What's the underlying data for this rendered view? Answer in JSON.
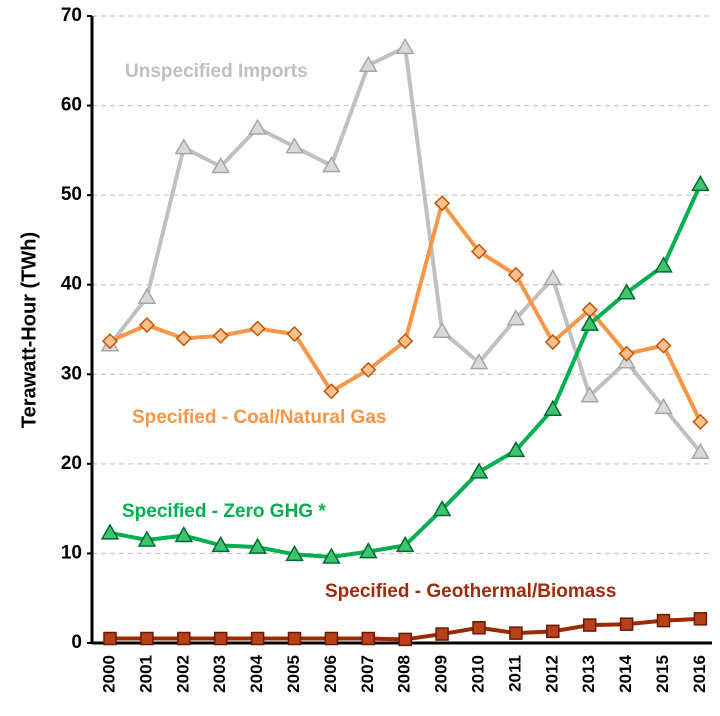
{
  "chart_data": {
    "type": "line",
    "y_label": "Terawatt-Hour (TWh)",
    "categories": [
      "2000",
      "2001",
      "2002",
      "2003",
      "2004",
      "2005",
      "2006",
      "2007",
      "2008",
      "2009",
      "2010",
      "2011",
      "2012",
      "2013",
      "2014",
      "2015",
      "2016"
    ],
    "series": [
      {
        "name": "Unspecified Imports",
        "color": "#c0c0c0",
        "marker": "triangle",
        "values": [
          33.3,
          38.6,
          55.3,
          53.2,
          57.5,
          55.4,
          53.3,
          64.5,
          66.5,
          34.8,
          31.3,
          36.2,
          40.7,
          27.6,
          31.4,
          26.3,
          21.3
        ]
      },
      {
        "name": "Specified - Coal/Natural Gas",
        "color": "#f79646",
        "marker": "diamond",
        "values": [
          33.7,
          35.5,
          34.0,
          34.3,
          35.1,
          34.5,
          28.1,
          30.5,
          33.7,
          49.1,
          43.7,
          41.1,
          33.6,
          37.2,
          32.3,
          33.2,
          24.7
        ]
      },
      {
        "name": "Specified - Zero GHG *",
        "color": "#00b050",
        "marker": "triangle",
        "values": [
          12.3,
          11.5,
          12.0,
          10.9,
          10.7,
          9.9,
          9.6,
          10.2,
          10.9,
          14.9,
          19.1,
          21.5,
          26.1,
          35.6,
          39.1,
          42.1,
          51.2
        ]
      },
      {
        "name": "Specified - Geothermal/Biomass",
        "color": "#9c2a00",
        "marker": "square",
        "values": [
          0.5,
          0.5,
          0.5,
          0.5,
          0.5,
          0.5,
          0.5,
          0.5,
          0.4,
          1.0,
          1.7,
          1.1,
          1.3,
          2.0,
          2.1,
          2.5,
          2.7
        ]
      }
    ],
    "ylim": [
      0,
      70
    ],
    "yticks": [
      0,
      10,
      20,
      30,
      40,
      50,
      60,
      70
    ],
    "grid": true
  }
}
